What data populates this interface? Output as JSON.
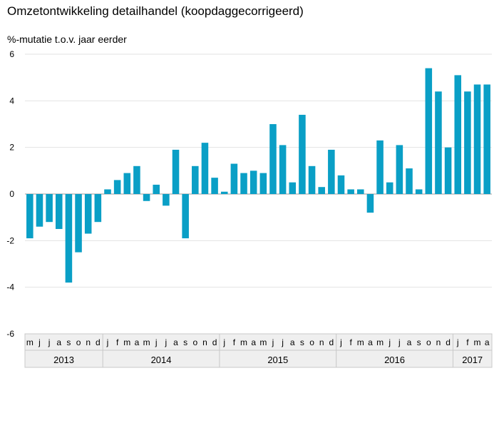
{
  "chart_data": {
    "type": "bar",
    "title": "Omzetontwikkeling detailhandel (koopdaggecorrigeerd)",
    "ylabel": "%-mutatie t.o.v. jaar eerder",
    "xlabel": "",
    "ylim": [
      -6,
      6
    ],
    "yticks": [
      6,
      4,
      2,
      0,
      -2,
      -4,
      -6
    ],
    "grid": true,
    "bar_color": "#0a9fc6",
    "categories": [
      "m",
      "j",
      "j",
      "a",
      "s",
      "o",
      "n",
      "d",
      "j",
      "f",
      "m",
      "a",
      "m",
      "j",
      "j",
      "a",
      "s",
      "o",
      "n",
      "d",
      "j",
      "f",
      "m",
      "a",
      "m",
      "j",
      "j",
      "a",
      "s",
      "o",
      "n",
      "d",
      "j",
      "f",
      "m",
      "a",
      "m",
      "j",
      "j",
      "a",
      "s",
      "o",
      "n",
      "d",
      "j",
      "f",
      "m",
      "a"
    ],
    "years": [
      {
        "label": "2013",
        "months": 8
      },
      {
        "label": "2014",
        "months": 12
      },
      {
        "label": "2015",
        "months": 12
      },
      {
        "label": "2016",
        "months": 12
      },
      {
        "label": "2017",
        "months": 4
      }
    ],
    "values": [
      -1.9,
      -1.4,
      -1.2,
      -1.5,
      -3.8,
      -2.5,
      -1.7,
      -1.2,
      0.2,
      0.6,
      0.9,
      1.2,
      -0.3,
      0.4,
      -0.5,
      1.9,
      -1.9,
      1.2,
      2.2,
      0.7,
      0.1,
      1.3,
      0.9,
      1.0,
      0.9,
      3.0,
      2.1,
      0.5,
      3.4,
      1.2,
      0.3,
      1.9,
      0.8,
      0.2,
      0.2,
      -0.8,
      2.3,
      0.5,
      2.1,
      1.1,
      0.2,
      5.4,
      4.4,
      2.0,
      5.1,
      4.4,
      4.7,
      4.7
    ]
  }
}
